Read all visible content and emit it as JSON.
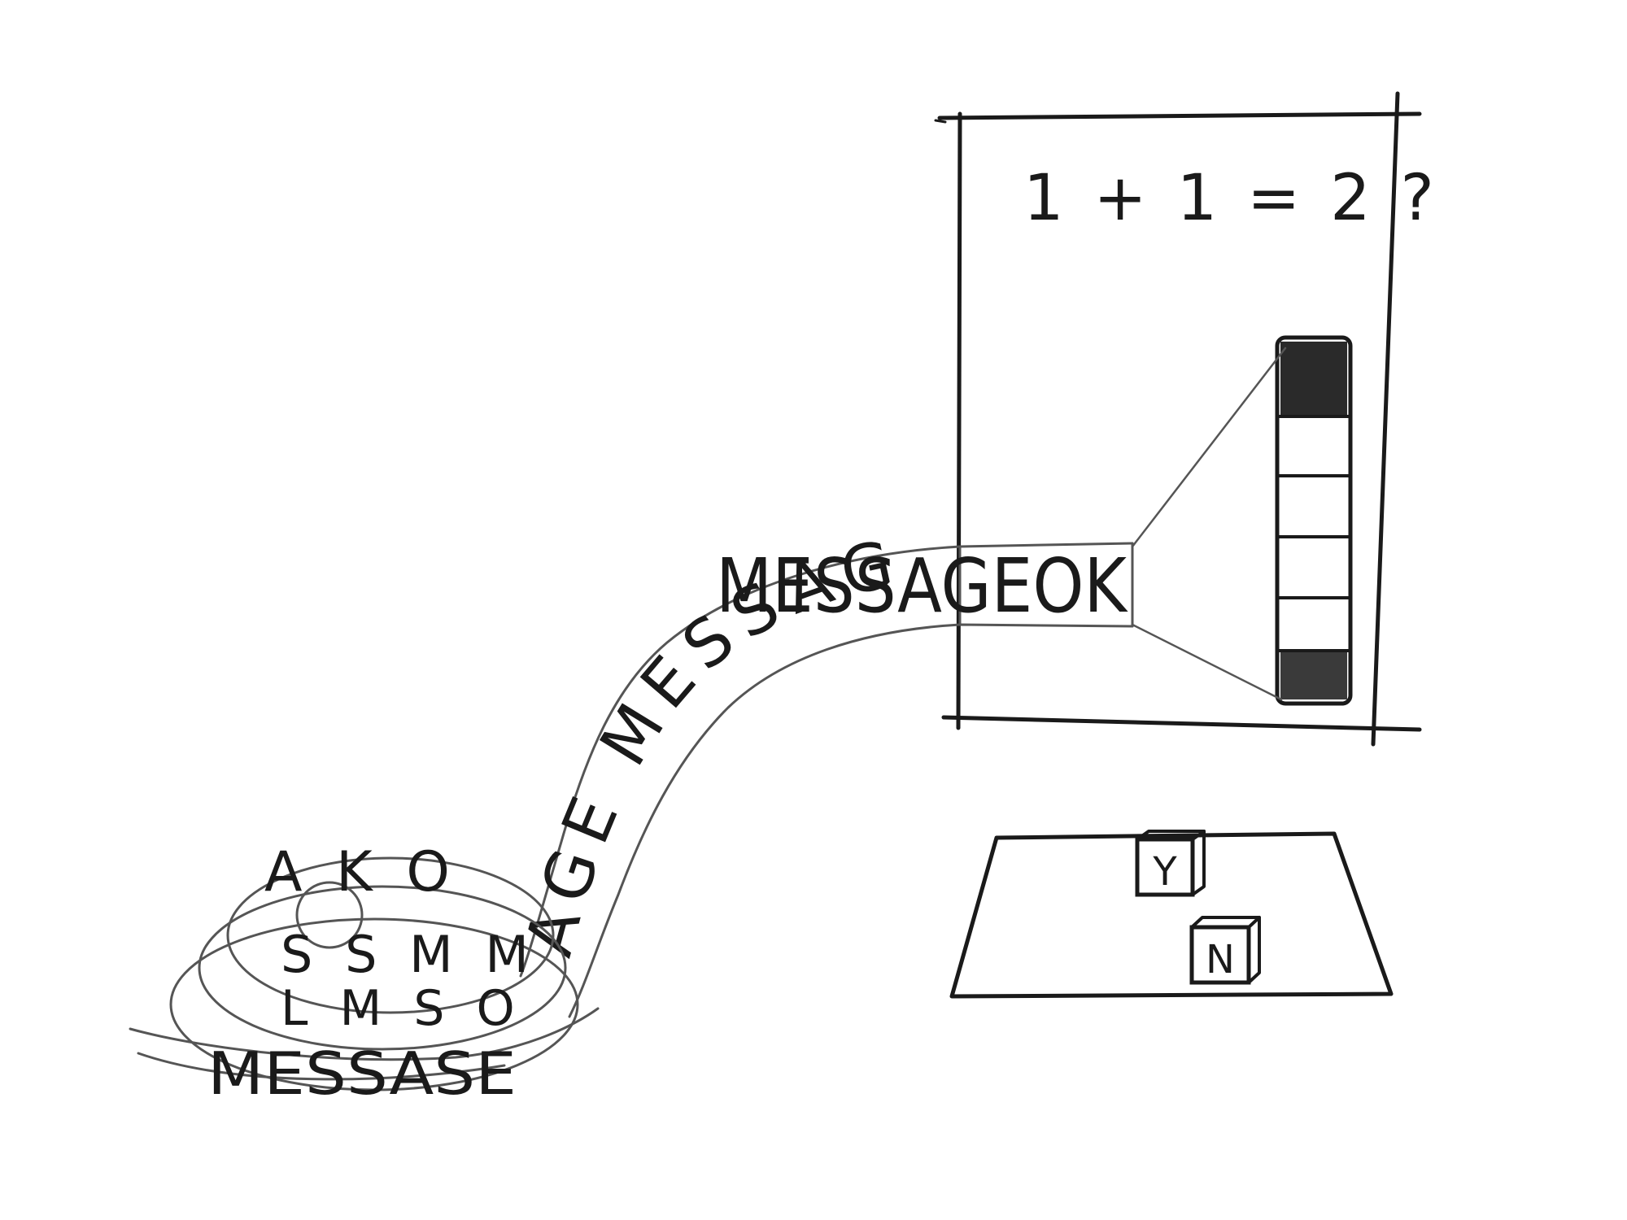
{
  "monitor": {
    "question": "1 + 1 = 2 ?",
    "meter": {
      "segments": 6,
      "filled_top": 1,
      "filled_bottom": 1
    }
  },
  "tape": {
    "exit_word": "MESSAGEOK",
    "arc_text": "AGE MESSAGE",
    "coil_lines": [
      "A K O",
      "S S M M",
      "L M S O",
      "MESSASE"
    ]
  },
  "keyboard": {
    "keys": [
      "Y",
      "N"
    ]
  },
  "colors": {
    "ink": "#1a1a1a",
    "pencil": "#555555",
    "paper": "#ffffff",
    "meter_fill": "#2a2a2a"
  }
}
